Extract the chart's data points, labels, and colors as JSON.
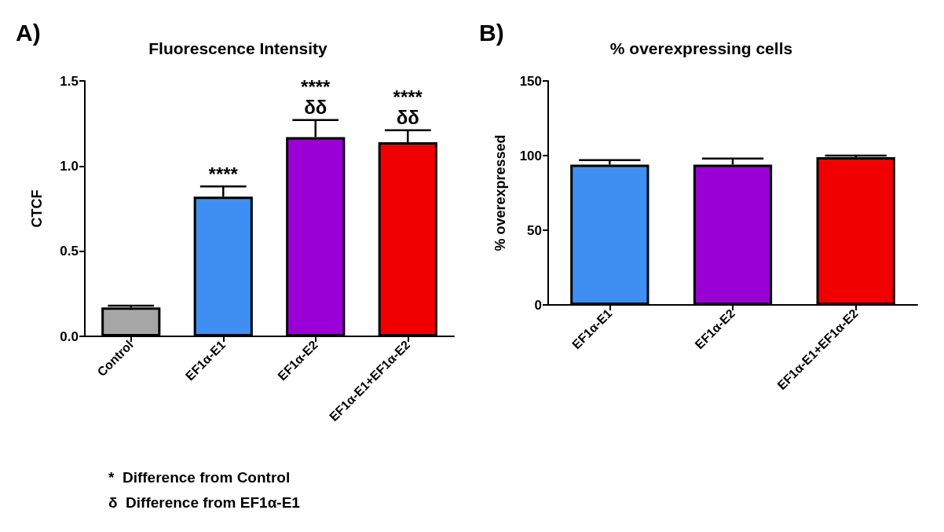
{
  "chart_data": [
    {
      "type": "bar",
      "title": "Fluorescence Intensity",
      "ylabel": "CTCF",
      "categories": [
        "Control",
        "EF1α-E1",
        "EF1α-E2",
        "EF1α-E1+EF1α-E2"
      ],
      "values": [
        0.17,
        0.82,
        1.17,
        1.14
      ],
      "colors": [
        "#a6a6a6",
        "#3f8ef2",
        "#9a00d6",
        "#f00000"
      ],
      "errors": [
        [
          0.17,
          0.18
        ],
        [
          0.82,
          0.88
        ],
        [
          1.17,
          1.27
        ],
        [
          1.14,
          1.21
        ]
      ],
      "ylim": [
        0,
        1.5
      ],
      "yticks": [
        {
          "value": 0,
          "label": "0.0"
        },
        0.5,
        {
          "value": 1,
          "label": "1.0"
        },
        1.5
      ],
      "grid": false,
      "annotations": [
        "A)",
        {
          "text": "****",
          "x": "EF1α-E1",
          "y": 0.88
        },
        {
          "text": "δδ",
          "x": "EF1α-E2",
          "y": 1.27
        },
        {
          "text": "****",
          "x": "EF1α-E2",
          "y": 1.27
        },
        {
          "text": "δδ",
          "x": "EF1α-E1+EF1α-E2",
          "y": 1.21
        },
        {
          "text": "****",
          "x": "EF1α-E1+EF1α-E2",
          "y": 1.21
        },
        "*  Difference from Control",
        "δ  Difference from EF1α-E1"
      ]
    },
    {
      "type": "bar",
      "title": "% overexpressing cells",
      "ylabel": "% overexpressed",
      "categories": [
        "EF1α-E1",
        "EF1α-E2",
        "EF1α-E1+EF1α-E2"
      ],
      "values": [
        94,
        94,
        99
      ],
      "colors": [
        "#3f8ef2",
        "#9a00d6",
        "#f00000"
      ],
      "errors": [
        [
          94,
          97
        ],
        [
          94,
          98
        ],
        [
          99,
          100
        ]
      ],
      "ylim": [
        0,
        150
      ],
      "yticks": [
        0,
        50,
        100,
        150
      ],
      "grid": false,
      "annotations": [
        "B)"
      ]
    }
  ]
}
